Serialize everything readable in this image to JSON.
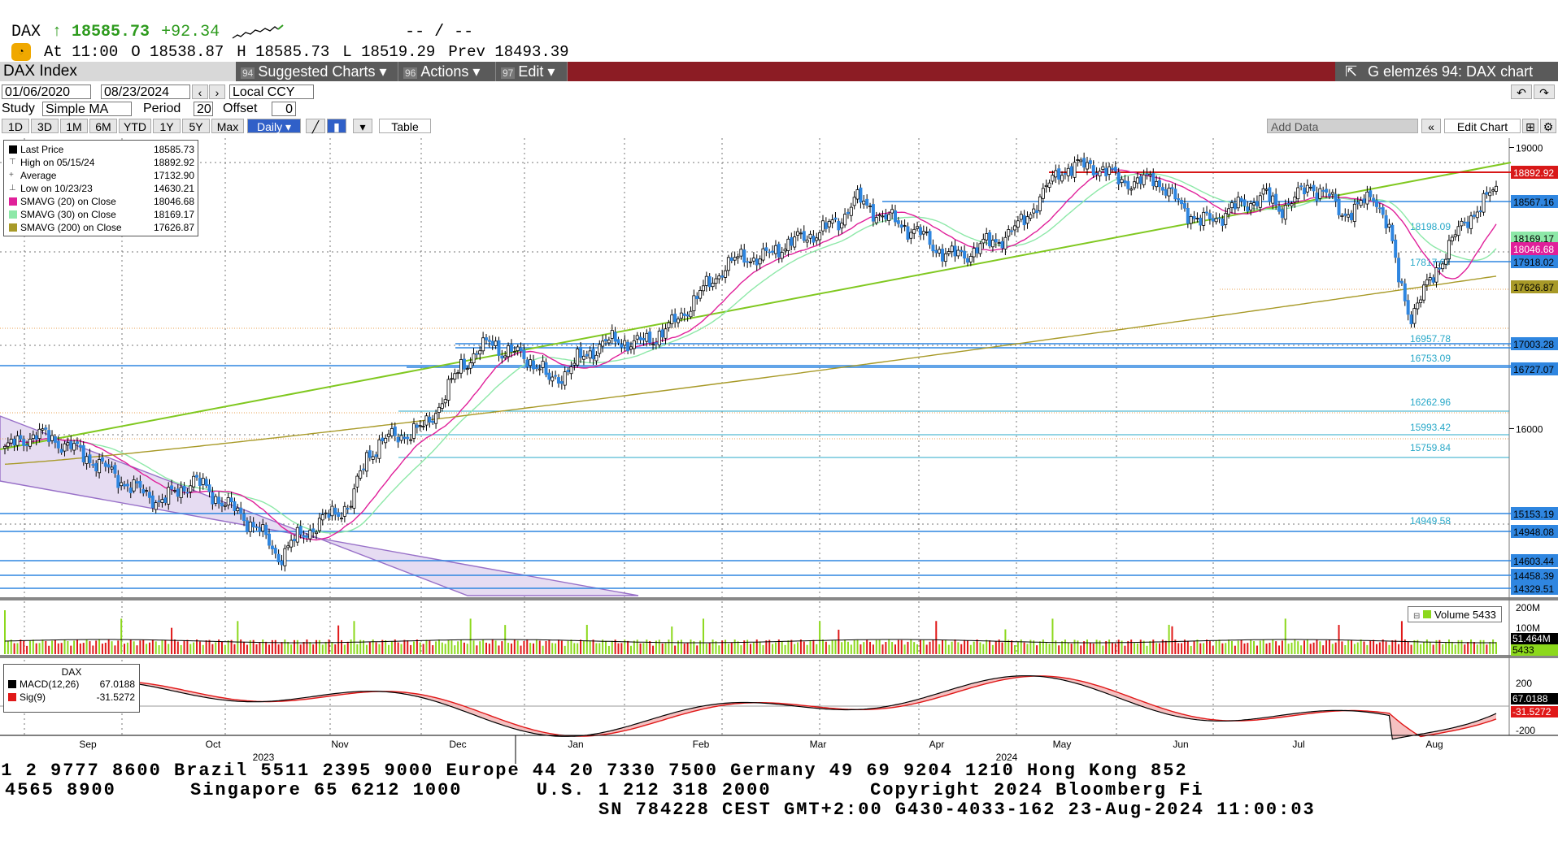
{
  "quote": {
    "ticker": "DAX",
    "arrow": "↑",
    "last": "18585.73",
    "change": "+92.34",
    "dashes": "-- / --",
    "at_label": "At",
    "time": "11:00",
    "open_label": "O",
    "open": "18538.87",
    "high_label": "H",
    "high": "18585.73",
    "low_label": "L",
    "low": "18519.29",
    "prev_label": "Prev",
    "prev": "18493.39"
  },
  "titlebar": {
    "security": "DAX Index",
    "suggested_num": "94",
    "suggested": "Suggested Charts ▾",
    "actions_num": "96",
    "actions": "Actions ▾",
    "edit_num": "97",
    "edit": "Edit ▾",
    "right_title": "G elemzés 94: DAX chart"
  },
  "controls": {
    "start_date": "01/06/2020",
    "end_date": "08/23/2024",
    "currency": "Local CCY",
    "study_label": "Study",
    "study_value": "Simple MA",
    "period_label": "Period",
    "period_value": "20",
    "offset_label": "Offset",
    "offset_value": "0",
    "ranges": [
      "1D",
      "3D",
      "1M",
      "6M",
      "YTD",
      "1Y",
      "5Y",
      "Max"
    ],
    "frequency": "Daily ▾",
    "table": "Table",
    "add_data": "Add Data",
    "edit_chart": "Edit Chart"
  },
  "legend": {
    "rows": [
      {
        "label": "Last Price",
        "value": "18585.73",
        "color": "#000000"
      },
      {
        "label": "High on 05/15/24",
        "value": "18892.92",
        "color": "#666666"
      },
      {
        "label": "Average",
        "value": "17132.90",
        "color": "#666666"
      },
      {
        "label": "Low on 10/23/23",
        "value": "14630.21",
        "color": "#666666"
      },
      {
        "label": "SMAVG (20)  on Close",
        "value": "18046.68",
        "color": "#e0209a"
      },
      {
        "label": "SMAVG (30)  on Close",
        "value": "18169.17",
        "color": "#8de8a8"
      },
      {
        "label": "SMAVG (200)  on Close",
        "value": "17626.87",
        "color": "#a89a28"
      }
    ]
  },
  "volume_legend": "Volume 5433",
  "macd_legend": {
    "title": "DAX",
    "macd_label": "MACD(12,26)",
    "macd_value": "67.0188",
    "sig_label": "Sig(9)",
    "sig_value": "-31.5272"
  },
  "colors": {
    "up": "#2f86e0",
    "red_line": "#d81818",
    "green_line": "#80c820",
    "sma20": "#e0209a",
    "sma30": "#8de8a8",
    "sma200": "#a89a28",
    "channel_fill": "#e6dcf2",
    "volume_up": "#8cd81c",
    "volume_down": "#e01818"
  },
  "chart_data": {
    "type": "candlestick",
    "ylim": [
      14200,
      19100
    ],
    "yticks": [
      19000,
      16000
    ],
    "price_tags": [
      "18892.92",
      "18567.16",
      "18169.17",
      "18046.68",
      "17918.02",
      "17626.87",
      "17003.28",
      "16727.07",
      "15153.19",
      "14948.08",
      "14603.44",
      "14458.39",
      "14329.51"
    ],
    "level_labels": [
      "18198.09",
      "17817.07",
      "16957.78",
      "16753.09",
      "16262.96",
      "15993.42",
      "15759.84",
      "14949.58"
    ],
    "x_months": [
      "Sep",
      "Oct",
      "Nov",
      "Dec",
      "Jan",
      "Feb",
      "Mar",
      "Apr",
      "May",
      "Jun",
      "Jul",
      "Aug"
    ],
    "year_labels": [
      "2023",
      "2024"
    ],
    "volume_ticks": [
      "200M",
      "100M"
    ],
    "volume_tags": [
      "51.464M",
      "5433"
    ],
    "macd_ticks": [
      "200",
      "-200"
    ],
    "macd_tags": [
      "67.0188",
      "-31.5272"
    ],
    "key_levels": {
      "high": 18892.92,
      "low": 14630.21,
      "last": 18585.73,
      "sma20": 18046.68,
      "sma30": 18169.17,
      "sma200": 17626.87
    },
    "waypoints": [
      [
        0,
        15780
      ],
      [
        10,
        15950
      ],
      [
        20,
        15820
      ],
      [
        30,
        15620
      ],
      [
        40,
        15380
      ],
      [
        50,
        15220
      ],
      [
        60,
        15450
      ],
      [
        70,
        15200
      ],
      [
        80,
        14950
      ],
      [
        87,
        14630
      ],
      [
        92,
        14800
      ],
      [
        100,
        15000
      ],
      [
        110,
        15200
      ],
      [
        115,
        15700
      ],
      [
        120,
        15870
      ],
      [
        128,
        15950
      ],
      [
        133,
        16000
      ],
      [
        140,
        16350
      ],
      [
        145,
        16680
      ],
      [
        150,
        16800
      ],
      [
        155,
        16950
      ],
      [
        158,
        16820
      ],
      [
        165,
        16780
      ],
      [
        170,
        16650
      ],
      [
        173,
        16500
      ],
      [
        178,
        16600
      ],
      [
        185,
        16800
      ],
      [
        190,
        16900
      ],
      [
        195,
        16950
      ],
      [
        200,
        16900
      ],
      [
        205,
        16950
      ],
      [
        212,
        17100
      ],
      [
        220,
        17400
      ],
      [
        228,
        17700
      ],
      [
        235,
        17850
      ],
      [
        240,
        17800
      ],
      [
        247,
        17950
      ],
      [
        255,
        18050
      ],
      [
        265,
        18200
      ],
      [
        270,
        18450
      ],
      [
        280,
        18250
      ],
      [
        290,
        18100
      ],
      [
        295,
        17950
      ],
      [
        300,
        17850
      ],
      [
        305,
        17850
      ],
      [
        310,
        17950
      ],
      [
        315,
        18000
      ],
      [
        322,
        18150
      ],
      [
        330,
        18500
      ],
      [
        335,
        18750
      ],
      [
        345,
        18820
      ],
      [
        352,
        18700
      ],
      [
        360,
        18600
      ],
      [
        365,
        18700
      ],
      [
        370,
        18500
      ],
      [
        375,
        18350
      ],
      [
        380,
        18200
      ],
      [
        385,
        18250
      ],
      [
        390,
        18350
      ],
      [
        395,
        18400
      ],
      [
        400,
        18500
      ],
      [
        405,
        18350
      ],
      [
        410,
        18450
      ],
      [
        415,
        18600
      ],
      [
        420,
        18500
      ],
      [
        425,
        18300
      ],
      [
        430,
        18350
      ],
      [
        435,
        18500
      ],
      [
        438,
        18300
      ],
      [
        440,
        18100
      ],
      [
        443,
        17600
      ],
      [
        447,
        17200
      ],
      [
        451,
        17450
      ],
      [
        455,
        17700
      ],
      [
        460,
        18000
      ],
      [
        465,
        18250
      ],
      [
        470,
        18400
      ],
      [
        474,
        18586
      ]
    ]
  }
}
